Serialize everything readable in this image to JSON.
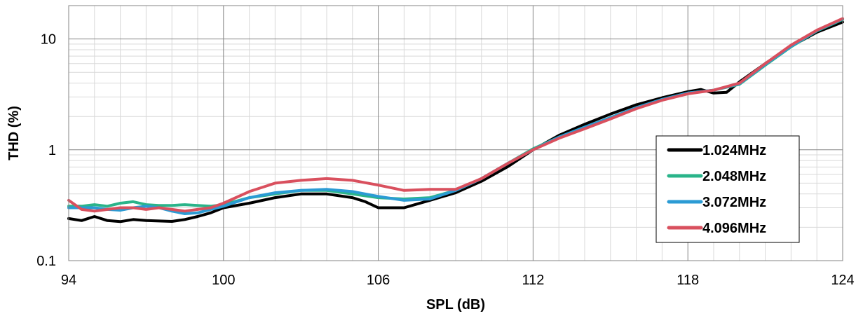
{
  "chart_data": {
    "type": "line",
    "title": "",
    "xlabel": "SPL (dB)",
    "ylabel": "THD (%)",
    "xlim": [
      94,
      124
    ],
    "ylim": [
      0.1,
      20
    ],
    "y_scale": "log",
    "grid": true,
    "legend_position": "right",
    "x_ticks": [
      94,
      100,
      106,
      112,
      118,
      124
    ],
    "x_tick_labels": [
      "94",
      "100",
      "106",
      "112",
      "118",
      "124"
    ],
    "y_ticks": [
      0.1,
      1,
      10
    ],
    "y_tick_labels": [
      "0.1",
      "1",
      "10"
    ],
    "series": [
      {
        "name": "1.024MHz",
        "color": "#000000",
        "x": [
          94,
          94.5,
          95,
          95.5,
          96,
          96.5,
          97,
          97.5,
          98,
          98.5,
          99,
          99.5,
          100,
          101,
          102,
          103,
          104,
          105,
          105.5,
          106,
          107,
          108,
          109,
          110,
          111,
          112,
          113,
          114,
          115,
          116,
          117,
          118,
          118.5,
          119,
          119.5,
          120,
          121,
          122,
          123,
          124
        ],
        "y": [
          0.24,
          0.23,
          0.25,
          0.23,
          0.225,
          0.235,
          0.23,
          0.228,
          0.226,
          0.235,
          0.25,
          0.27,
          0.3,
          0.33,
          0.37,
          0.4,
          0.4,
          0.37,
          0.34,
          0.3,
          0.3,
          0.35,
          0.41,
          0.52,
          0.7,
          1.0,
          1.35,
          1.7,
          2.1,
          2.55,
          2.95,
          3.35,
          3.5,
          3.25,
          3.3,
          4.1,
          6.0,
          8.6,
          11.5,
          14.2
        ]
      },
      {
        "name": "2.048MHz",
        "color": "#2ab48a",
        "x": [
          94,
          94.5,
          95,
          95.5,
          96,
          96.5,
          97,
          97.5,
          98,
          98.5,
          99,
          99.5,
          100,
          101,
          102,
          103,
          104,
          105,
          106,
          107,
          108,
          109,
          110,
          111,
          112,
          113,
          114,
          115,
          116,
          117,
          118,
          119,
          120,
          121,
          122,
          123,
          124
        ],
        "y": [
          0.31,
          0.31,
          0.32,
          0.31,
          0.33,
          0.34,
          0.32,
          0.315,
          0.315,
          0.32,
          0.315,
          0.31,
          0.32,
          0.37,
          0.4,
          0.43,
          0.43,
          0.4,
          0.37,
          0.36,
          0.37,
          0.43,
          0.55,
          0.75,
          1.02,
          1.3,
          1.6,
          1.95,
          2.4,
          2.85,
          3.25,
          3.45,
          3.9,
          5.8,
          8.5,
          11.8,
          15.0
        ]
      },
      {
        "name": "3.072MHz",
        "color": "#2b9bd4",
        "x": [
          94,
          94.5,
          95,
          95.5,
          96,
          96.5,
          97,
          97.5,
          98,
          98.5,
          99,
          99.5,
          100,
          101,
          102,
          103,
          104,
          105,
          106,
          107,
          108,
          109,
          110,
          111,
          112,
          113,
          114,
          115,
          116,
          117,
          118,
          119,
          120,
          121,
          122,
          123,
          124
        ],
        "y": [
          0.3,
          0.3,
          0.3,
          0.29,
          0.285,
          0.3,
          0.31,
          0.3,
          0.28,
          0.265,
          0.27,
          0.29,
          0.31,
          0.37,
          0.41,
          0.43,
          0.44,
          0.42,
          0.38,
          0.35,
          0.36,
          0.43,
          0.55,
          0.75,
          1.0,
          1.3,
          1.6,
          1.95,
          2.4,
          2.85,
          3.25,
          3.45,
          3.95,
          5.9,
          8.6,
          11.9,
          15.2
        ]
      },
      {
        "name": "4.096MHz",
        "color": "#d9505e",
        "x": [
          94,
          94.5,
          95,
          95.5,
          96,
          96.5,
          97,
          97.5,
          98,
          98.5,
          99,
          99.5,
          100,
          101,
          102,
          103,
          104,
          105,
          106,
          107,
          108,
          109,
          110,
          111,
          112,
          113,
          114,
          115,
          116,
          117,
          118,
          119,
          120,
          121,
          122,
          123,
          124
        ],
        "y": [
          0.35,
          0.29,
          0.28,
          0.29,
          0.3,
          0.3,
          0.29,
          0.3,
          0.29,
          0.28,
          0.29,
          0.3,
          0.33,
          0.42,
          0.5,
          0.53,
          0.55,
          0.53,
          0.48,
          0.43,
          0.44,
          0.44,
          0.55,
          0.75,
          1.0,
          1.27,
          1.55,
          1.9,
          2.35,
          2.8,
          3.2,
          3.45,
          4.0,
          6.0,
          8.8,
          12.0,
          15.3
        ]
      }
    ]
  }
}
